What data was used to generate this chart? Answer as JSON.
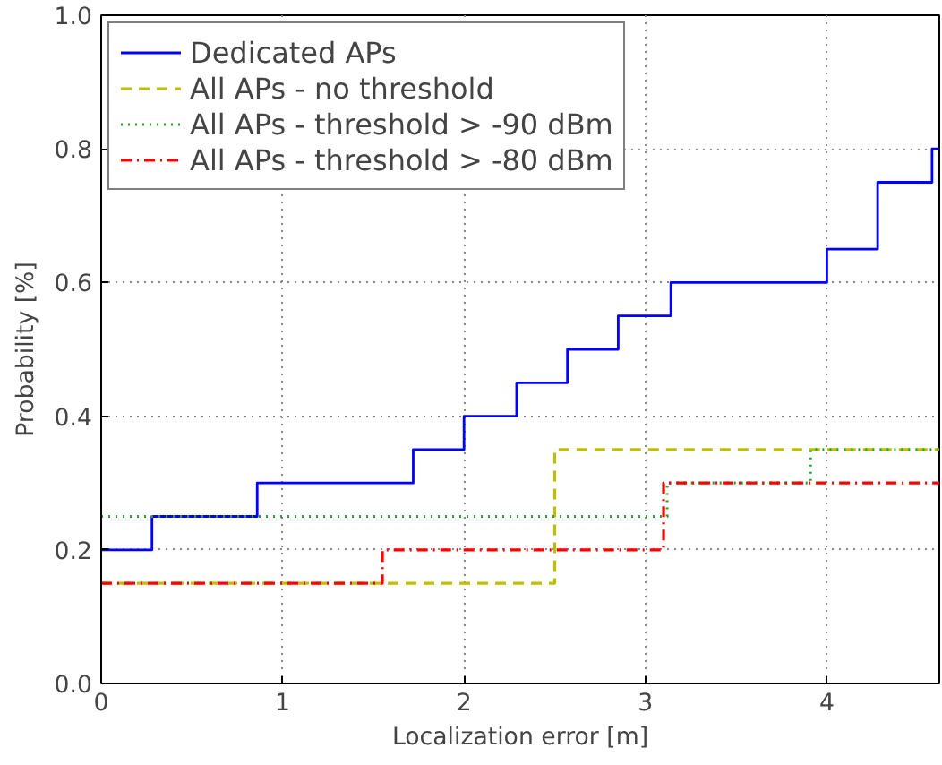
{
  "chart_data": {
    "type": "step",
    "xlabel": "Localization error [m]",
    "ylabel": "Probability [%]",
    "xlim": [
      0,
      4.62
    ],
    "ylim": [
      0,
      1.0
    ],
    "xticks": [
      0,
      1,
      2,
      3,
      4
    ],
    "yticks": [
      {
        "value": 0,
        "label": "0.0"
      },
      {
        "value": 0.2,
        "label": "0.2"
      },
      {
        "value": 0.4,
        "label": "0.4"
      },
      {
        "value": 0.6,
        "label": "0.6"
      },
      {
        "value": 0.8,
        "label": "0.8"
      },
      {
        "value": 1.0,
        "label": "1.0"
      }
    ],
    "grid": true,
    "legend": "top left",
    "marker": "none",
    "series": [
      {
        "name": "Dedicated APs",
        "color": "#0000ff",
        "line_style": "solid",
        "x": [
          0,
          0.28,
          0.86,
          1.72,
          2.0,
          2.29,
          2.57,
          2.85,
          3.14,
          4.0,
          4.28,
          4.58,
          4.62
        ],
        "values": [
          0.2,
          0.25,
          0.3,
          0.35,
          0.4,
          0.45,
          0.5,
          0.55,
          0.6,
          0.65,
          0.75,
          0.8,
          0.8
        ]
      },
      {
        "name": "All APs - no threshold",
        "color": "#bfbf00",
        "line_style": "dashed",
        "x": [
          0,
          2.5,
          4.62
        ],
        "values": [
          0.15,
          0.35,
          0.35
        ]
      },
      {
        "name": "All APs - threshold > -90 dBm",
        "color": "#2ca02c",
        "line_style": "dotted",
        "x": [
          0,
          3.12,
          3.91,
          4.62
        ],
        "values": [
          0.25,
          0.3,
          0.35,
          0.35
        ]
      },
      {
        "name": "All APs - threshold > -80 dBm",
        "color": "#ff0000",
        "line_style": "dashdot",
        "x": [
          0,
          1.55,
          3.1,
          4.62
        ],
        "values": [
          0.15,
          0.2,
          0.3,
          0.3
        ]
      }
    ]
  }
}
